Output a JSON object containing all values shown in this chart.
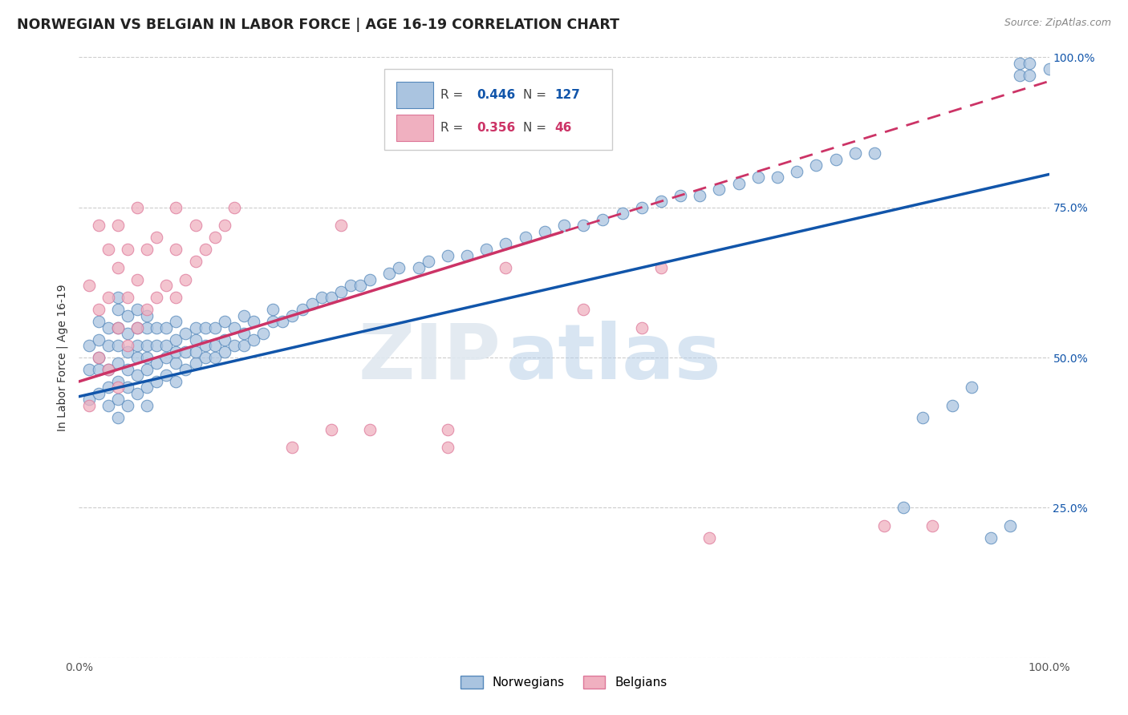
{
  "title": "NORWEGIAN VS BELGIAN IN LABOR FORCE | AGE 16-19 CORRELATION CHART",
  "source": "Source: ZipAtlas.com",
  "ylabel": "In Labor Force | Age 16-19",
  "xmin": 0.0,
  "xmax": 1.0,
  "ymin": 0.0,
  "ymax": 1.0,
  "yticks": [
    0.0,
    0.25,
    0.5,
    0.75,
    1.0
  ],
  "ytick_labels": [
    "",
    "25.0%",
    "50.0%",
    "75.0%",
    "100.0%"
  ],
  "legend_norwegian": "Norwegians",
  "legend_belgian": "Belgians",
  "norwegian_R": 0.446,
  "norwegian_N": 127,
  "belgian_R": 0.356,
  "belgian_N": 46,
  "norwegian_color": "#aac4e0",
  "norwegian_edge_color": "#5588bb",
  "norwegian_line_color": "#1155aa",
  "belgian_color": "#f0b0c0",
  "belgian_edge_color": "#dd7799",
  "belgian_line_color": "#cc3366",
  "background_color": "#ffffff",
  "grid_color": "#cccccc",
  "title_fontsize": 12.5,
  "axis_label_fontsize": 10,
  "tick_label_fontsize": 10,
  "nor_intercept": 0.435,
  "nor_slope_val": 0.37,
  "bel_intercept": 0.46,
  "bel_slope_val": 0.5,
  "nor_x": [
    0.01,
    0.01,
    0.01,
    0.02,
    0.02,
    0.02,
    0.02,
    0.02,
    0.03,
    0.03,
    0.03,
    0.03,
    0.03,
    0.04,
    0.04,
    0.04,
    0.04,
    0.04,
    0.04,
    0.04,
    0.04,
    0.05,
    0.05,
    0.05,
    0.05,
    0.05,
    0.05,
    0.06,
    0.06,
    0.06,
    0.06,
    0.06,
    0.06,
    0.07,
    0.07,
    0.07,
    0.07,
    0.07,
    0.07,
    0.07,
    0.08,
    0.08,
    0.08,
    0.08,
    0.09,
    0.09,
    0.09,
    0.09,
    0.1,
    0.1,
    0.1,
    0.1,
    0.1,
    0.11,
    0.11,
    0.11,
    0.12,
    0.12,
    0.12,
    0.12,
    0.13,
    0.13,
    0.13,
    0.14,
    0.14,
    0.14,
    0.15,
    0.15,
    0.15,
    0.16,
    0.16,
    0.17,
    0.17,
    0.17,
    0.18,
    0.18,
    0.19,
    0.2,
    0.2,
    0.21,
    0.22,
    0.23,
    0.24,
    0.25,
    0.26,
    0.27,
    0.28,
    0.29,
    0.3,
    0.32,
    0.33,
    0.35,
    0.36,
    0.38,
    0.4,
    0.42,
    0.44,
    0.46,
    0.48,
    0.5,
    0.52,
    0.54,
    0.56,
    0.58,
    0.6,
    0.62,
    0.64,
    0.66,
    0.68,
    0.7,
    0.72,
    0.74,
    0.76,
    0.78,
    0.8,
    0.82,
    0.85,
    0.87,
    0.9,
    0.92,
    0.94,
    0.96,
    0.97,
    0.97,
    0.98,
    0.98,
    1.0
  ],
  "nor_y": [
    0.43,
    0.48,
    0.52,
    0.44,
    0.48,
    0.5,
    0.53,
    0.56,
    0.42,
    0.45,
    0.48,
    0.52,
    0.55,
    0.4,
    0.43,
    0.46,
    0.49,
    0.52,
    0.55,
    0.58,
    0.6,
    0.42,
    0.45,
    0.48,
    0.51,
    0.54,
    0.57,
    0.44,
    0.47,
    0.5,
    0.52,
    0.55,
    0.58,
    0.42,
    0.45,
    0.48,
    0.5,
    0.52,
    0.55,
    0.57,
    0.46,
    0.49,
    0.52,
    0.55,
    0.47,
    0.5,
    0.52,
    0.55,
    0.46,
    0.49,
    0.51,
    0.53,
    0.56,
    0.48,
    0.51,
    0.54,
    0.49,
    0.51,
    0.53,
    0.55,
    0.5,
    0.52,
    0.55,
    0.5,
    0.52,
    0.55,
    0.51,
    0.53,
    0.56,
    0.52,
    0.55,
    0.52,
    0.54,
    0.57,
    0.53,
    0.56,
    0.54,
    0.56,
    0.58,
    0.56,
    0.57,
    0.58,
    0.59,
    0.6,
    0.6,
    0.61,
    0.62,
    0.62,
    0.63,
    0.64,
    0.65,
    0.65,
    0.66,
    0.67,
    0.67,
    0.68,
    0.69,
    0.7,
    0.71,
    0.72,
    0.72,
    0.73,
    0.74,
    0.75,
    0.76,
    0.77,
    0.77,
    0.78,
    0.79,
    0.8,
    0.8,
    0.81,
    0.82,
    0.83,
    0.84,
    0.84,
    0.25,
    0.4,
    0.42,
    0.45,
    0.2,
    0.22,
    0.97,
    0.99,
    0.97,
    0.99,
    0.98
  ],
  "bel_x": [
    0.01,
    0.01,
    0.02,
    0.02,
    0.02,
    0.03,
    0.03,
    0.03,
    0.04,
    0.04,
    0.04,
    0.04,
    0.05,
    0.05,
    0.05,
    0.06,
    0.06,
    0.06,
    0.07,
    0.07,
    0.08,
    0.08,
    0.09,
    0.1,
    0.1,
    0.1,
    0.11,
    0.12,
    0.12,
    0.13,
    0.14,
    0.15,
    0.16,
    0.22,
    0.26,
    0.27,
    0.3,
    0.38,
    0.38,
    0.44,
    0.52,
    0.58,
    0.6,
    0.65,
    0.83,
    0.88
  ],
  "bel_y": [
    0.42,
    0.62,
    0.5,
    0.58,
    0.72,
    0.48,
    0.6,
    0.68,
    0.45,
    0.55,
    0.65,
    0.72,
    0.52,
    0.6,
    0.68,
    0.55,
    0.63,
    0.75,
    0.58,
    0.68,
    0.6,
    0.7,
    0.62,
    0.6,
    0.68,
    0.75,
    0.63,
    0.66,
    0.72,
    0.68,
    0.7,
    0.72,
    0.75,
    0.35,
    0.38,
    0.72,
    0.38,
    0.35,
    0.38,
    0.65,
    0.58,
    0.55,
    0.65,
    0.2,
    0.22,
    0.22
  ]
}
